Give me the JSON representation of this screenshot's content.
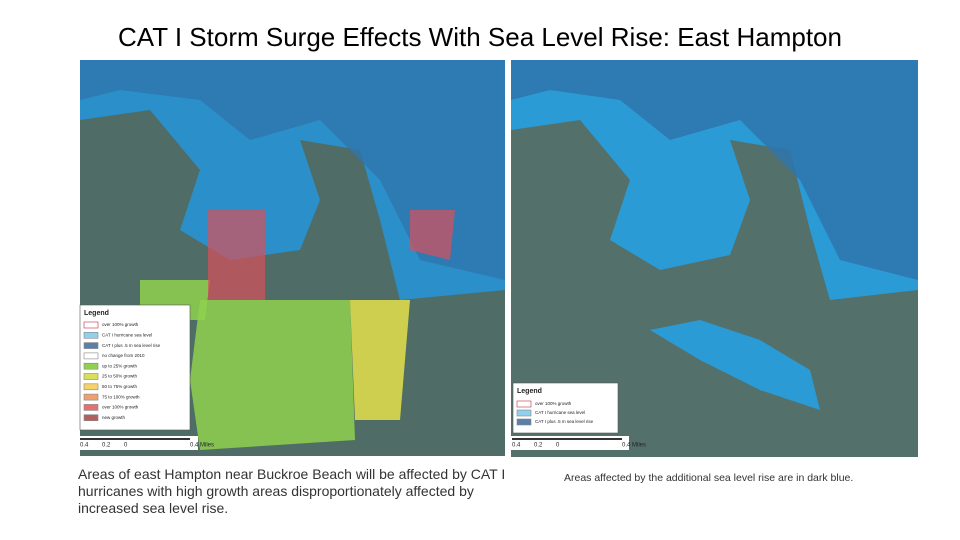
{
  "title": "CAT I Storm Surge Effects With Sea Level Rise: East Hampton",
  "left_map": {
    "legend": {
      "title": "Legend",
      "items": [
        "over 100% growth",
        "CAT I hurricane sea level",
        "CAT I plus .5 m sea level rise",
        "no change from 2010",
        "up to 25% growth",
        "25 to 50% growth",
        "50 to 75% growth",
        "75 to 100% growth",
        "over 100% growth",
        "new growth"
      ]
    },
    "scale": [
      "0.4",
      "0.2",
      "0",
      "0.4 Miles"
    ]
  },
  "left_caption": "Areas of east Hampton near Buckroe Beach will be affected by CAT I hurricanes with high growth areas disproportionately affected by increased sea level rise.",
  "right_map": {
    "legend": {
      "title": "Legend",
      "items": [
        "over 100% growth",
        "CAT I hurricane sea level",
        "CAT I plus .5 m sea level rise"
      ]
    },
    "scale": [
      "0.4",
      "0.2",
      "0",
      "0.4 Miles"
    ]
  },
  "right_caption": "Areas affected by the additional sea level rise are in dark blue."
}
